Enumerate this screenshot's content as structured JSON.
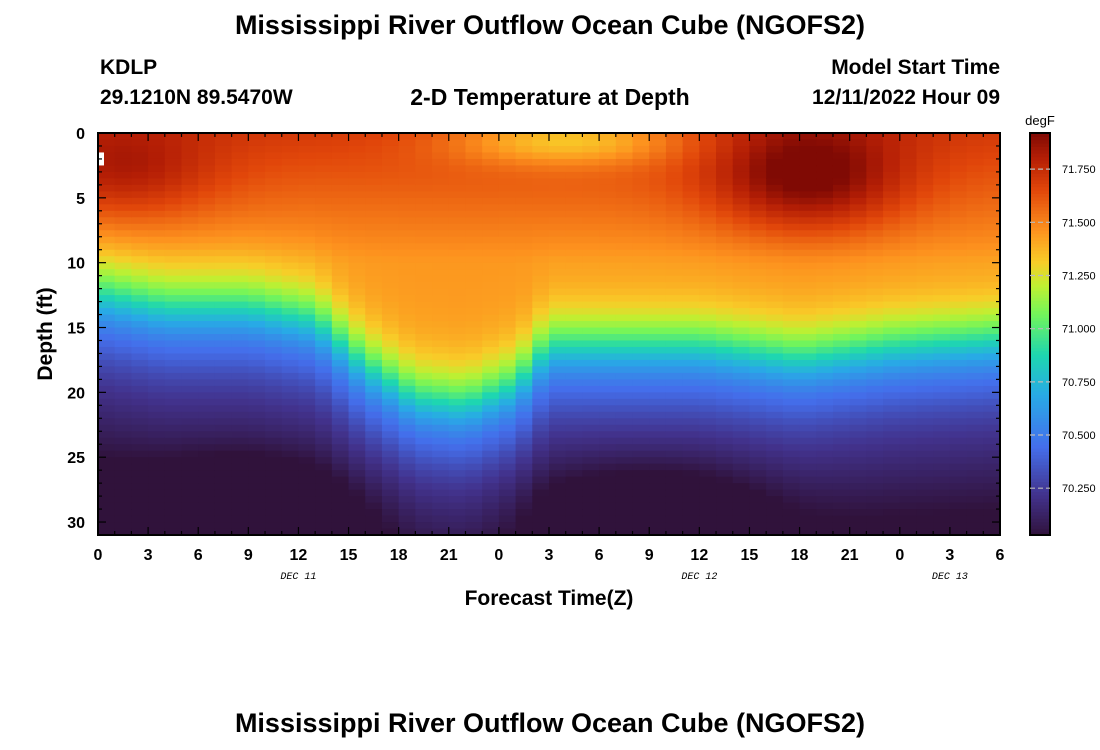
{
  "header": {
    "title": "Mississippi River Outflow Ocean Cube (NGOFS2)",
    "station_id": "KDLP",
    "station_coords": "29.1210N  89.5470W",
    "plot_title": "2-D Temperature at Depth",
    "model_start_label": "Model Start Time",
    "model_start_value": "12/11/2022 Hour 09"
  },
  "footer": {
    "title": "Mississippi River Outflow Ocean Cube (NGOFS2)"
  },
  "chart_data": {
    "type": "heatmap",
    "title": "2-D Temperature at Depth",
    "xlabel": "Forecast Time(Z)",
    "ylabel": "Depth (ft)",
    "colorbar_label": "degF",
    "x_tick_labels": [
      "0",
      "3",
      "6",
      "9",
      "12",
      "15",
      "18",
      "21",
      "0",
      "3",
      "6",
      "9",
      "12",
      "15",
      "18",
      "21",
      "0",
      "3",
      "6"
    ],
    "x_hours": [
      0,
      3,
      6,
      9,
      12,
      15,
      18,
      21,
      24,
      27,
      30,
      33,
      36,
      39,
      42,
      45,
      48,
      51,
      54
    ],
    "date_labels": [
      {
        "label": "DEC 11",
        "hour": 12
      },
      {
        "label": "DEC 12",
        "hour": 36
      },
      {
        "label": "DEC 13",
        "hour": 51
      }
    ],
    "xlim": [
      0,
      54
    ],
    "y_ticks": [
      0,
      5,
      10,
      15,
      20,
      25,
      30
    ],
    "ylim": [
      0,
      31
    ],
    "colorbar_ticks": [
      "71.750",
      "71.500",
      "71.250",
      "71.000",
      "70.750",
      "70.500",
      "70.250"
    ],
    "colorbar_tick_values": [
      71.75,
      71.5,
      71.25,
      71.0,
      70.75,
      70.5,
      70.25
    ],
    "colorbar_range": [
      70.03,
      71.92
    ],
    "field_features": {
      "thermocline_depth_ft_at_hour": [
        [
          0,
          12.5
        ],
        [
          4,
          13.5
        ],
        [
          9,
          13.5
        ],
        [
          13,
          14.5
        ],
        [
          16,
          18
        ],
        [
          19,
          20.5
        ],
        [
          22,
          21
        ],
        [
          25,
          19.5
        ],
        [
          27,
          16.5
        ],
        [
          31,
          16.5
        ],
        [
          36,
          16.5
        ],
        [
          42,
          17.5
        ],
        [
          48,
          16.5
        ],
        [
          54,
          16
        ]
      ],
      "warm_core": {
        "hour": 42.5,
        "depth_ft": 3.5,
        "value": 71.9
      },
      "surface_cool_patch": {
        "hour": 28,
        "depth_ft": 0.5,
        "value": 71.15
      },
      "deep_cold_cores": [
        {
          "hour": 9,
          "depth_ft": 29.5,
          "value": 70.05
        },
        {
          "hour": 33,
          "depth_ft": 29.5,
          "value": 70.05
        }
      ]
    }
  }
}
